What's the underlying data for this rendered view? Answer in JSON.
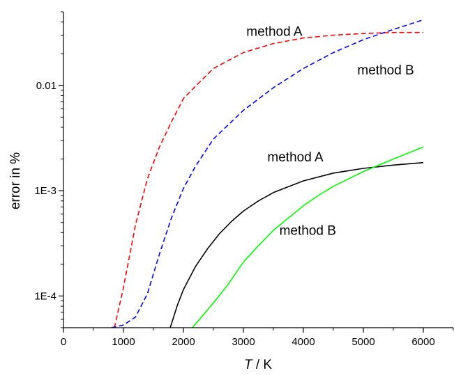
{
  "chart_data": {
    "type": "line",
    "title": "",
    "xlabel": "T / K",
    "xlabel_var": "T",
    "xlabel_unit": " / K",
    "ylabel": "error in %",
    "xlim": [
      0,
      6500
    ],
    "ylim": [
      5e-05,
      0.05
    ],
    "yscale": "log",
    "grid": false,
    "x_ticks": [
      0,
      1000,
      2000,
      3000,
      4000,
      5000,
      6000
    ],
    "x_tick_labels": [
      "0",
      "1000",
      "2000",
      "3000",
      "4000",
      "5000",
      "6000"
    ],
    "y_ticks": [
      0.0001,
      0.001,
      0.01
    ],
    "y_tick_labels": [
      "1E-4",
      "1E-3",
      "0.01"
    ],
    "series": [
      {
        "name": "method A",
        "color": "#ff0000",
        "style": "dashed",
        "points": [
          [
            850,
            5e-05
          ],
          [
            1000,
            0.00012
          ],
          [
            1200,
            0.00047
          ],
          [
            1400,
            0.0013
          ],
          [
            1600,
            0.0026
          ],
          [
            1800,
            0.0045
          ],
          [
            2000,
            0.0075
          ],
          [
            2200,
            0.0098
          ],
          [
            2500,
            0.0145
          ],
          [
            3000,
            0.0205
          ],
          [
            3500,
            0.025
          ],
          [
            4000,
            0.0282
          ],
          [
            4500,
            0.03
          ],
          [
            5000,
            0.0311
          ],
          [
            5500,
            0.0318
          ],
          [
            6000,
            0.0318
          ]
        ]
      },
      {
        "name": "method B",
        "color": "#0000ff",
        "style": "dashed",
        "points": [
          [
            800,
            5e-05
          ],
          [
            1000,
            5.3e-05
          ],
          [
            1200,
            6.3e-05
          ],
          [
            1400,
            0.000105
          ],
          [
            1600,
            0.00025
          ],
          [
            1800,
            0.00055
          ],
          [
            2000,
            0.00105
          ],
          [
            2200,
            0.0017
          ],
          [
            2500,
            0.0031
          ],
          [
            3000,
            0.0058
          ],
          [
            3500,
            0.0095
          ],
          [
            4000,
            0.0145
          ],
          [
            4500,
            0.0205
          ],
          [
            5000,
            0.0272
          ],
          [
            5500,
            0.034
          ],
          [
            6000,
            0.042
          ]
        ]
      },
      {
        "name": "method A",
        "color": "#000000",
        "style": "solid",
        "points": [
          [
            1780,
            5e-05
          ],
          [
            1900,
            8.2e-05
          ],
          [
            2000,
            0.000115
          ],
          [
            2200,
            0.00019
          ],
          [
            2400,
            0.00028
          ],
          [
            2600,
            0.00039
          ],
          [
            2800,
            0.00051
          ],
          [
            3000,
            0.00064
          ],
          [
            3250,
            0.0008
          ],
          [
            3500,
            0.00096
          ],
          [
            4000,
            0.00124
          ],
          [
            4500,
            0.00147
          ],
          [
            5000,
            0.00163
          ],
          [
            5500,
            0.00175
          ],
          [
            6000,
            0.00185
          ]
        ]
      },
      {
        "name": "method B",
        "color": "#00ff00",
        "style": "solid",
        "points": [
          [
            2150,
            5e-05
          ],
          [
            2300,
            6.3e-05
          ],
          [
            2500,
            8.6e-05
          ],
          [
            2750,
            0.00013
          ],
          [
            3000,
            0.00021
          ],
          [
            3250,
            0.0003
          ],
          [
            3500,
            0.00042
          ],
          [
            3750,
            0.00055
          ],
          [
            4000,
            0.00072
          ],
          [
            4250,
            0.0009
          ],
          [
            4500,
            0.0011
          ],
          [
            5000,
            0.00152
          ],
          [
            5500,
            0.002
          ],
          [
            6000,
            0.0026
          ]
        ]
      }
    ],
    "annotations": [
      {
        "text": "method A",
        "x": 3050,
        "y": 0.0295
      },
      {
        "text": "method B",
        "x": 4900,
        "y": 0.0127
      },
      {
        "text": "method A",
        "x": 3400,
        "y": 0.0019
      },
      {
        "text": "method B",
        "x": 3600,
        "y": 0.00038
      }
    ]
  }
}
